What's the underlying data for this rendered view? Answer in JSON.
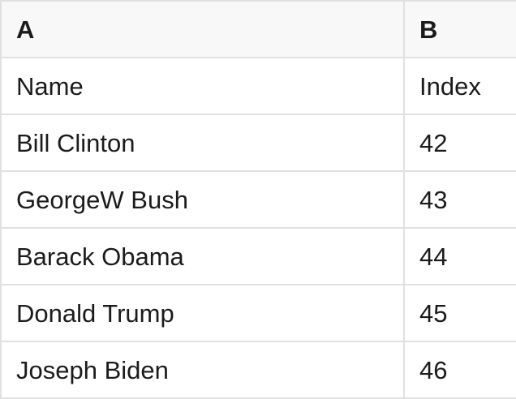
{
  "colors": {
    "header_bg": "#f8f8f8",
    "row_bg": "#ffffff",
    "border": "#e0e0e0",
    "text": "#1b1b1b"
  },
  "table": {
    "column_headers": [
      {
        "label": "A"
      },
      {
        "label": "B"
      }
    ],
    "rows": [
      {
        "cells": [
          "Name",
          "Index"
        ]
      },
      {
        "cells": [
          "Bill Clinton",
          "42"
        ]
      },
      {
        "cells": [
          "GeorgeW Bush",
          "43"
        ]
      },
      {
        "cells": [
          "Barack Obama",
          "44"
        ]
      },
      {
        "cells": [
          "Donald Trump",
          "45"
        ]
      },
      {
        "cells": [
          "Joseph Biden",
          "46"
        ]
      }
    ]
  }
}
